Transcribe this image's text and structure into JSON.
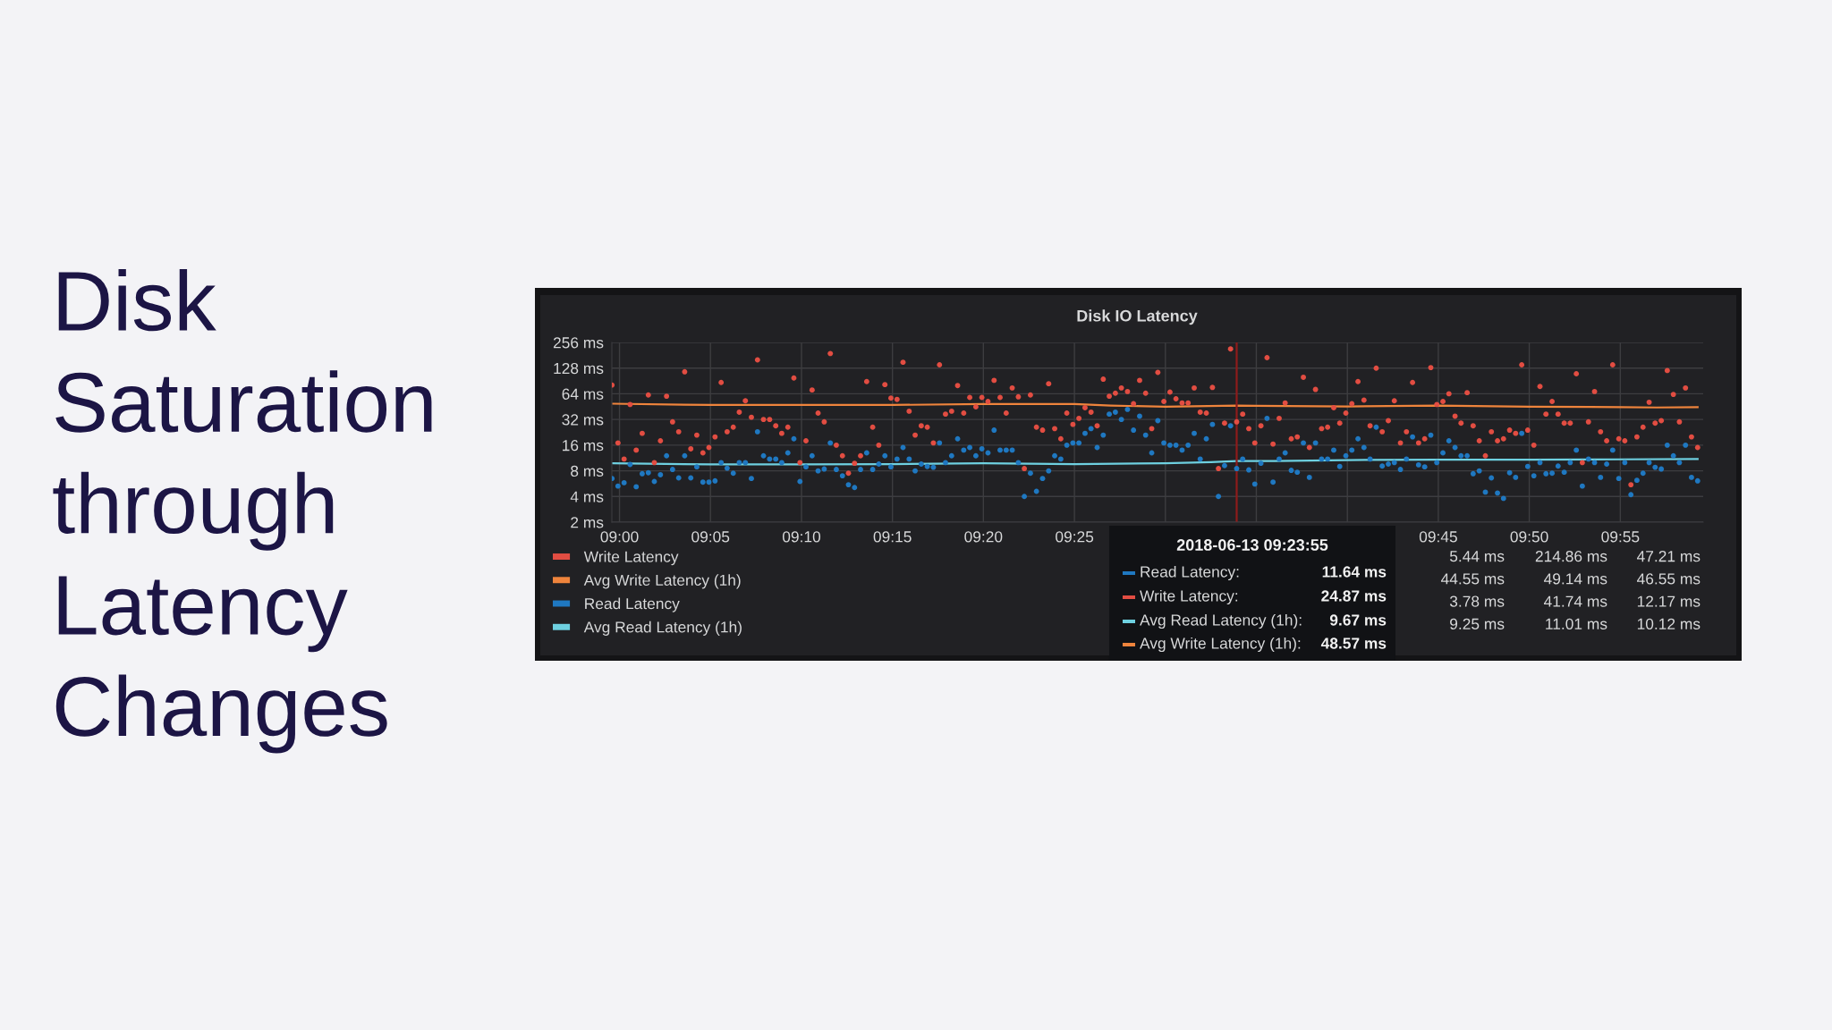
{
  "chart_data": {
    "type": "scatter",
    "title": "Disk IO Latency",
    "x": [
      8.9931,
      8.9986,
      9.0042,
      9.0097,
      9.0153,
      9.0208,
      9.0264,
      9.0319,
      9.0375,
      9.0431,
      9.0486,
      9.0542,
      9.0597,
      9.0653,
      9.0708,
      9.0764,
      9.0819,
      9.0875,
      9.0931,
      9.0986,
      9.1042,
      9.1097,
      9.1153,
      9.1208,
      9.1264,
      9.1319,
      9.1375,
      9.1431,
      9.1486,
      9.1542,
      9.1597,
      9.1653,
      9.1708,
      9.1764,
      9.1819,
      9.1875,
      9.1931,
      9.1986,
      9.2042,
      9.2097,
      9.2153,
      9.2208,
      9.2264,
      9.2319,
      9.2375,
      9.2431,
      9.2486,
      9.2542,
      9.2597,
      9.2653,
      9.2708,
      9.2764,
      9.2819,
      9.2875,
      9.2931,
      9.2986,
      9.3042,
      9.3097,
      9.3153,
      9.3208,
      9.3264,
      9.3319,
      9.3375,
      9.3431,
      9.3486,
      9.3542,
      9.3597,
      9.3653,
      9.3708,
      9.3764,
      9.3819,
      9.3875,
      9.3931,
      9.3986,
      9.4042,
      9.4097,
      9.4153,
      9.4208,
      9.4264,
      9.4319,
      9.4375,
      9.4431,
      9.4486,
      9.4542,
      9.4597,
      9.4653,
      9.4708,
      9.4764,
      9.4819,
      9.4875,
      9.4931,
      9.4986,
      9.5042,
      9.5097,
      9.5153,
      9.5208,
      9.5264,
      9.5319,
      9.5375,
      9.5431,
      9.5486,
      9.5542,
      9.5597,
      9.5653,
      9.5708,
      9.5764,
      9.5819,
      9.5875,
      9.5931,
      9.5986,
      9.6042,
      9.6097,
      9.6153,
      9.6208,
      9.6264,
      9.6319,
      9.6375,
      9.6431,
      9.6486,
      9.6542,
      9.6597,
      9.6653,
      9.6708,
      9.6764,
      9.6819,
      9.6875,
      9.6931,
      9.6986,
      9.7042,
      9.7097,
      9.7153,
      9.7208,
      9.7264,
      9.7319,
      9.7375,
      9.7431,
      9.7486,
      9.7542,
      9.7597,
      9.7653,
      9.7708,
      9.7764,
      9.7819,
      9.7875,
      9.7931,
      9.7986,
      9.8042,
      9.8097,
      9.8153,
      9.8208,
      9.8264,
      9.8319,
      9.8375,
      9.8431,
      9.8486,
      9.8542,
      9.8597,
      9.8653,
      9.8708,
      9.8764,
      9.8819,
      9.8875,
      9.8931,
      9.8986,
      9.9042,
      9.9097,
      9.9153,
      9.9208,
      9.9264,
      9.9319,
      9.9375,
      9.9431,
      9.9486,
      9.9542,
      9.9597,
      9.9653,
      9.9708,
      9.9764,
      9.9819,
      9.9875
    ],
    "series": [
      {
        "name": "Write Latency",
        "marker": "circle",
        "color": "#e24d42",
        "values": [
          81,
          17,
          11,
          48,
          14,
          22,
          62,
          10,
          18,
          60,
          30,
          23,
          116,
          14.5,
          21,
          13,
          15,
          20,
          87,
          23,
          26,
          39,
          53,
          34,
          160,
          32,
          32,
          27,
          22,
          26,
          98,
          10,
          18,
          71,
          38,
          30,
          190,
          16,
          12,
          7.5,
          9.8,
          12,
          89,
          26,
          16,
          82,
          57,
          55,
          150,
          40,
          21,
          27,
          26,
          17,
          140,
          37,
          40,
          80,
          38,
          58,
          45,
          58,
          52,
          92,
          58,
          38,
          75,
          59,
          8.5,
          62,
          26,
          24,
          84,
          25,
          19,
          38,
          28,
          33,
          44,
          39,
          27,
          95,
          60,
          65,
          75,
          68,
          49,
          92,
          65,
          25,
          114,
          52,
          67,
          56,
          50,
          50,
          75,
          39,
          38,
          76,
          8.5,
          29,
          215,
          30,
          37,
          25,
          17,
          27,
          170,
          16.5,
          33,
          50,
          19,
          20,
          100,
          15,
          72,
          25,
          26,
          44,
          29,
          38,
          49,
          89,
          54,
          27,
          128,
          23,
          31,
          53,
          17,
          23,
          87,
          17,
          19,
          130,
          48,
          52,
          64,
          35,
          29,
          66,
          27,
          18,
          12,
          23,
          18,
          19,
          24,
          22,
          140,
          24,
          16,
          78,
          37,
          52,
          37,
          29,
          29,
          110,
          10,
          30,
          68,
          23,
          18,
          140,
          19,
          18,
          5.5,
          20,
          26,
          51,
          29,
          31,
          120,
          63,
          30,
          75,
          20,
          15
        ]
      },
      {
        "name": "Avg Write Latency (1h)",
        "type": "line",
        "color": "#ef843c",
        "x": [
          8.9931,
          9.0833,
          9.1667,
          9.25,
          9.3333,
          9.4167,
          9.45,
          9.5,
          9.5653,
          9.5833,
          9.6667,
          9.75,
          9.8333,
          9.9167,
          9.95,
          9.9875
        ],
        "values": [
          49,
          47.3,
          47.3,
          47.3,
          48.6,
          48.6,
          46.6,
          45.1,
          46.6,
          46.2,
          45.5,
          46.6,
          45.1,
          44.7,
          44.2,
          44.7
        ]
      },
      {
        "name": "Read Latency",
        "marker": "circle",
        "color": "#1f78c1",
        "values": [
          6.5,
          5.3,
          5.8,
          9.5,
          5.2,
          7.4,
          7.6,
          6.0,
          7.2,
          12,
          8.3,
          6.6,
          12,
          6.6,
          8.9,
          5.9,
          5.9,
          6.1,
          10,
          8.6,
          7.5,
          10,
          10,
          6.5,
          23,
          12,
          11,
          11,
          10,
          13,
          19,
          6.0,
          8.9,
          12,
          8.0,
          8.4,
          17,
          8.3,
          7.0,
          5.5,
          5.1,
          8.3,
          13,
          8.3,
          9.6,
          12,
          8.9,
          11,
          15,
          11,
          8.0,
          9.6,
          9.0,
          8.8,
          17,
          10,
          12,
          19,
          14,
          15,
          12,
          14.5,
          13,
          24,
          14,
          14,
          14,
          10,
          4.0,
          7.5,
          4.6,
          6.5,
          8.0,
          12,
          11,
          16,
          17,
          17,
          22,
          25,
          15,
          21,
          37,
          39,
          32,
          42,
          24,
          35,
          21,
          13,
          31,
          17,
          16,
          16,
          14,
          16,
          22,
          11,
          19,
          28,
          4.0,
          9.2,
          27,
          8.5,
          11,
          8.2,
          5.6,
          9.8,
          33,
          5.9,
          11,
          13,
          8.1,
          7.7,
          17,
          6.7,
          17,
          11,
          11,
          14,
          9.0,
          12,
          14,
          19,
          15,
          11,
          26,
          9.1,
          9.6,
          10,
          8.3,
          11,
          20,
          9.4,
          8.9,
          21,
          10,
          13,
          18,
          15,
          12,
          12,
          7.4,
          8.0,
          4.5,
          6.6,
          4.4,
          3.8,
          7.6,
          6.7,
          22,
          9.0,
          7.0,
          10,
          7.4,
          7.5,
          9.1,
          7.7,
          10,
          14,
          5.3,
          11,
          10,
          6.7,
          9.6,
          14,
          6.5,
          10,
          4.2,
          6.2,
          7.5,
          10,
          8.8,
          8.4,
          16,
          12,
          10,
          16,
          6.7,
          6.1
        ]
      },
      {
        "name": "Avg Read Latency (1h)",
        "type": "line",
        "color": "#6ed0e0",
        "x": [
          8.9931,
          9.0833,
          9.1667,
          9.25,
          9.3333,
          9.4167,
          9.5,
          9.5417,
          9.5653,
          9.6,
          9.6667,
          9.75,
          9.8333,
          9.9167,
          9.9875
        ],
        "values": [
          9.8,
          9.5,
          9.5,
          9.6,
          9.8,
          9.6,
          9.8,
          10.1,
          10.4,
          10.4,
          10.7,
          10.8,
          10.8,
          10.9,
          11.0
        ]
      }
    ],
    "xlim": [
      8.993,
      9.9926
    ],
    "xticks": [
      {
        "value": 9,
        "label": "09:00"
      },
      {
        "value": 9.0833,
        "label": "09:05"
      },
      {
        "value": 9.1667,
        "label": "09:10"
      },
      {
        "value": 9.25,
        "label": "09:15"
      },
      {
        "value": 9.3333,
        "label": "09:20"
      },
      {
        "value": 9.4167,
        "label": "09:25"
      },
      {
        "value": 9.5,
        "label": null
      },
      {
        "value": 9.5833,
        "label": null
      },
      {
        "value": 9.6667,
        "label": null
      },
      {
        "value": 9.75,
        "label": "09:45"
      },
      {
        "value": 9.8333,
        "label": "09:50"
      },
      {
        "value": 9.9167,
        "label": "09:55"
      }
    ],
    "ylim": [
      2,
      256
    ],
    "yticks": [
      {
        "value": 2,
        "label": "2 ms"
      },
      {
        "value": 4,
        "label": "4 ms"
      },
      {
        "value": 8,
        "label": "8 ms"
      },
      {
        "value": 16,
        "label": "16 ms"
      },
      {
        "value": 32,
        "label": "32 ms"
      },
      {
        "value": 64,
        "label": "64 ms"
      },
      {
        "value": 128,
        "label": "128 ms"
      },
      {
        "value": 256,
        "label": "256 ms"
      }
    ],
    "log": "y",
    "grid": true,
    "legend": "bottom",
    "line_style": "solid",
    "ref_lines": [
      {
        "axis": "x",
        "value": 9.5653,
        "color": "#8e1b1b"
      }
    ],
    "annotations": [
      "Disk Saturation through Latency Changes",
      "2018-06-13 09:23:55",
      "Read Latency:",
      "11.64 ms",
      "Write Latency:",
      "24.87 ms",
      "Avg Read Latency (1h):",
      "9.67 ms",
      "Avg Write Latency (1h):",
      "48.57 ms",
      "5.44 ms",
      "214.86 ms",
      "47.21 ms",
      "44.55 ms",
      "49.14 ms",
      "46.55 ms",
      "3.78 ms",
      "41.74 ms",
      "12.17 ms",
      "9.25 ms",
      "11.01 ms",
      "10.12 ms"
    ]
  }
}
